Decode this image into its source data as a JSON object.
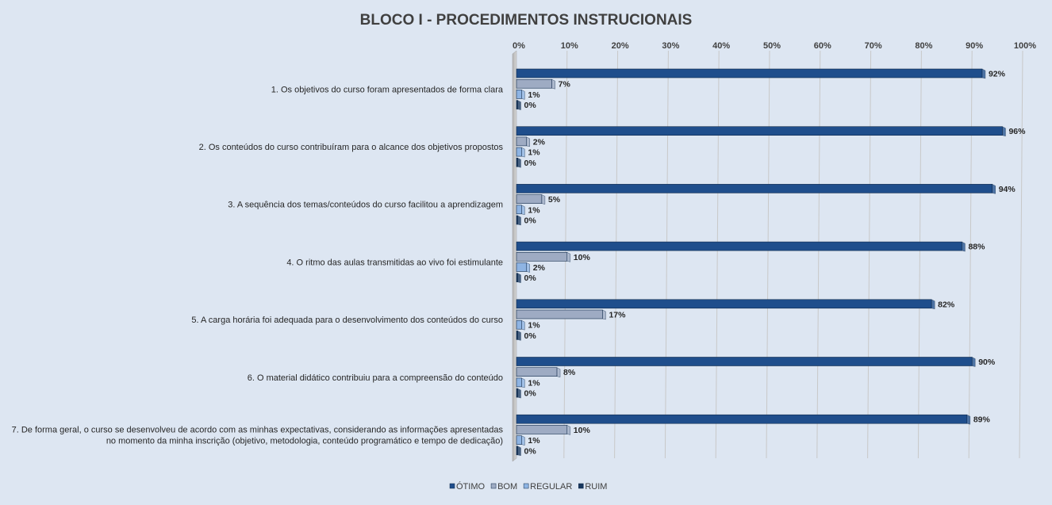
{
  "chart_data": {
    "type": "bar",
    "orientation": "horizontal",
    "title": "BLOCO I - PROCEDIMENTOS  INSTRUCIONAIS",
    "xlim": [
      0,
      100
    ],
    "x_ticks": [
      "0%",
      "10%",
      "20%",
      "30%",
      "40%",
      "50%",
      "60%",
      "70%",
      "80%",
      "90%",
      "100%"
    ],
    "x_axis_position": "top",
    "grid": true,
    "legend_position": "bottom",
    "categories": [
      [
        "1. Os objetivos do curso foram apresentados de forma clara"
      ],
      [
        "2. Os conteúdos do curso contribuíram para o alcance dos objetivos propostos"
      ],
      [
        "3. A sequência dos temas/conteúdos do curso facilitou a aprendizagem"
      ],
      [
        "4. O ritmo das aulas transmitidas ao vivo foi estimulante"
      ],
      [
        "5. A carga horária foi adequada para o desenvolvimento dos conteúdos do curso"
      ],
      [
        "6. O material didático contribuiu para a compreensão do conteúdo"
      ],
      [
        "7. De forma geral, o curso se desenvolveu de acordo com as minhas expectativas, considerando as informações apresentadas",
        "no momento da minha inscrição (objetivo, metodologia, conteúdo programático e tempo de dedicação)"
      ]
    ],
    "series": [
      {
        "name": "ÓTIMO",
        "color": "#1f4e8c",
        "values": [
          92,
          96,
          94,
          88,
          82,
          90,
          89
        ]
      },
      {
        "name": "BOM",
        "color": "#9eabc3",
        "values": [
          7,
          2,
          5,
          10,
          17,
          8,
          10
        ]
      },
      {
        "name": "REGULAR",
        "color": "#8eb4e3",
        "values": [
          1,
          1,
          1,
          2,
          1,
          1,
          1
        ]
      },
      {
        "name": "RUIM",
        "color": "#17375e",
        "values": [
          0,
          0,
          0,
          0,
          0,
          0,
          0
        ]
      }
    ],
    "data_label_suffix": "%"
  }
}
